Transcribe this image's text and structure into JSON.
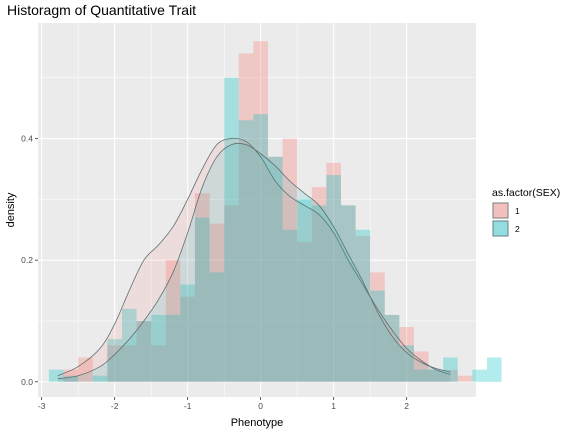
{
  "chart_data": {
    "type": "histogram",
    "title": "Historagm of Quantitative Trait",
    "xlabel": "Phenotype",
    "ylabel": "density",
    "xlim": [
      -3.05,
      2.95
    ],
    "ylim": [
      -0.025,
      0.59
    ],
    "x_ticks": [
      -3,
      -2,
      -1,
      0,
      1,
      2
    ],
    "y_ticks": [
      0.0,
      0.2,
      0.4
    ],
    "x_tick_labels": [
      "-3",
      "-2",
      "-1",
      "0",
      "1",
      "2"
    ],
    "y_tick_labels": [
      "0.0",
      "0.2",
      "0.4"
    ],
    "grid": true,
    "bin_start": -2.9,
    "bin_width": 0.2,
    "legend": {
      "title": "as.factor(SEX)",
      "position": "right",
      "entries": [
        "1",
        "2"
      ]
    },
    "series": [
      {
        "name": "1",
        "color": "#F8766D",
        "fill_opacity": 0.3,
        "densities": [
          0.0,
          0.02,
          0.04,
          0.0,
          0.06,
          0.06,
          0.1,
          0.06,
          0.2,
          0.14,
          0.31,
          0.26,
          0.29,
          0.54,
          0.56,
          0.37,
          0.4,
          0.23,
          0.32,
          0.36,
          0.29,
          0.24,
          0.18,
          0.11,
          0.09,
          0.05,
          0.02,
          0.02,
          0.01,
          0.0,
          0.0
        ],
        "density_curve": [
          [
            -2.78,
            0.01
          ],
          [
            -2.5,
            0.025
          ],
          [
            -2.2,
            0.055
          ],
          [
            -2.0,
            0.095
          ],
          [
            -1.8,
            0.15
          ],
          [
            -1.6,
            0.2
          ],
          [
            -1.4,
            0.225
          ],
          [
            -1.2,
            0.255
          ],
          [
            -1.0,
            0.3
          ],
          [
            -0.8,
            0.35
          ],
          [
            -0.6,
            0.39
          ],
          [
            -0.4,
            0.4
          ],
          [
            -0.2,
            0.395
          ],
          [
            0.0,
            0.37
          ],
          [
            0.2,
            0.33
          ],
          [
            0.4,
            0.305
          ],
          [
            0.6,
            0.29
          ],
          [
            0.8,
            0.275
          ],
          [
            1.0,
            0.245
          ],
          [
            1.2,
            0.2
          ],
          [
            1.4,
            0.16
          ],
          [
            1.6,
            0.12
          ],
          [
            1.8,
            0.085
          ],
          [
            2.0,
            0.055
          ],
          [
            2.2,
            0.035
          ],
          [
            2.4,
            0.02
          ],
          [
            2.6,
            0.012
          ]
        ]
      },
      {
        "name": "2",
        "color": "#00BFC4",
        "fill_opacity": 0.3,
        "densities": [
          0.02,
          0.01,
          0.0,
          0.01,
          0.07,
          0.12,
          0.1,
          0.11,
          0.11,
          0.16,
          0.27,
          0.18,
          0.5,
          0.43,
          0.44,
          0.37,
          0.25,
          0.3,
          0.29,
          0.34,
          0.29,
          0.25,
          0.15,
          0.11,
          0.06,
          0.02,
          0.02,
          0.04,
          0.0,
          0.02,
          0.04
        ],
        "density_curve": [
          [
            -2.78,
            0.005
          ],
          [
            -2.5,
            0.01
          ],
          [
            -2.2,
            0.025
          ],
          [
            -2.0,
            0.045
          ],
          [
            -1.8,
            0.07
          ],
          [
            -1.6,
            0.1
          ],
          [
            -1.4,
            0.135
          ],
          [
            -1.2,
            0.18
          ],
          [
            -1.0,
            0.245
          ],
          [
            -0.8,
            0.32
          ],
          [
            -0.6,
            0.37
          ],
          [
            -0.4,
            0.39
          ],
          [
            -0.2,
            0.39
          ],
          [
            0.0,
            0.375
          ],
          [
            0.2,
            0.355
          ],
          [
            0.4,
            0.33
          ],
          [
            0.6,
            0.31
          ],
          [
            0.8,
            0.29
          ],
          [
            1.0,
            0.255
          ],
          [
            1.2,
            0.21
          ],
          [
            1.4,
            0.165
          ],
          [
            1.6,
            0.115
          ],
          [
            1.8,
            0.075
          ],
          [
            2.0,
            0.048
          ],
          [
            2.2,
            0.032
          ],
          [
            2.4,
            0.022
          ],
          [
            2.6,
            0.016
          ]
        ]
      }
    ]
  }
}
